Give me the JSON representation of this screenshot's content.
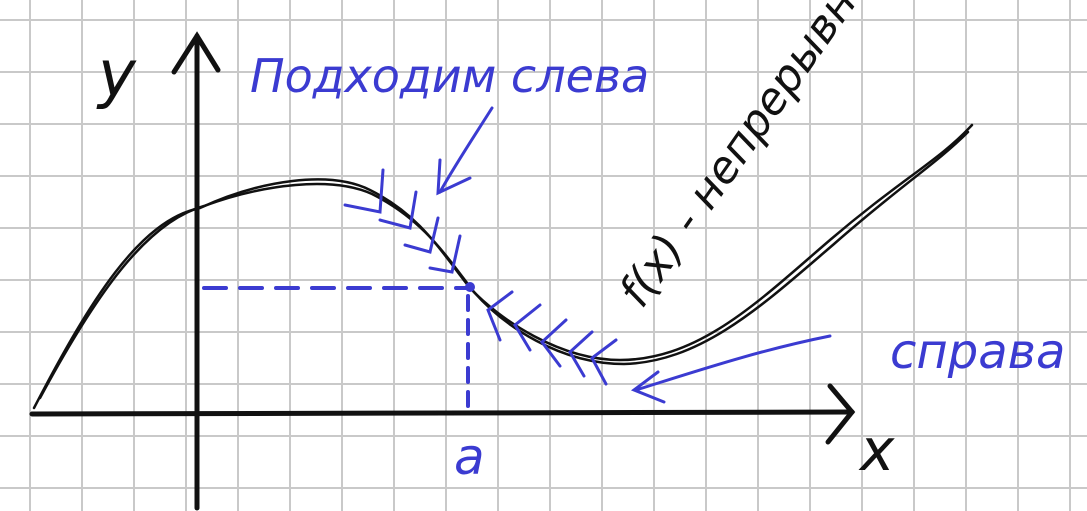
{
  "axes": {
    "y_label": "y",
    "x_label": "x",
    "point_label": "a"
  },
  "annotations": {
    "left_approach": "Подходим слева",
    "right_approach": "справа",
    "function_label": "f(x) - непрерывна"
  },
  "colors": {
    "grid": "#c9c9c9",
    "ink_black": "#111111",
    "ink_blue": "#3b3bd1",
    "background": "#ffffff"
  }
}
